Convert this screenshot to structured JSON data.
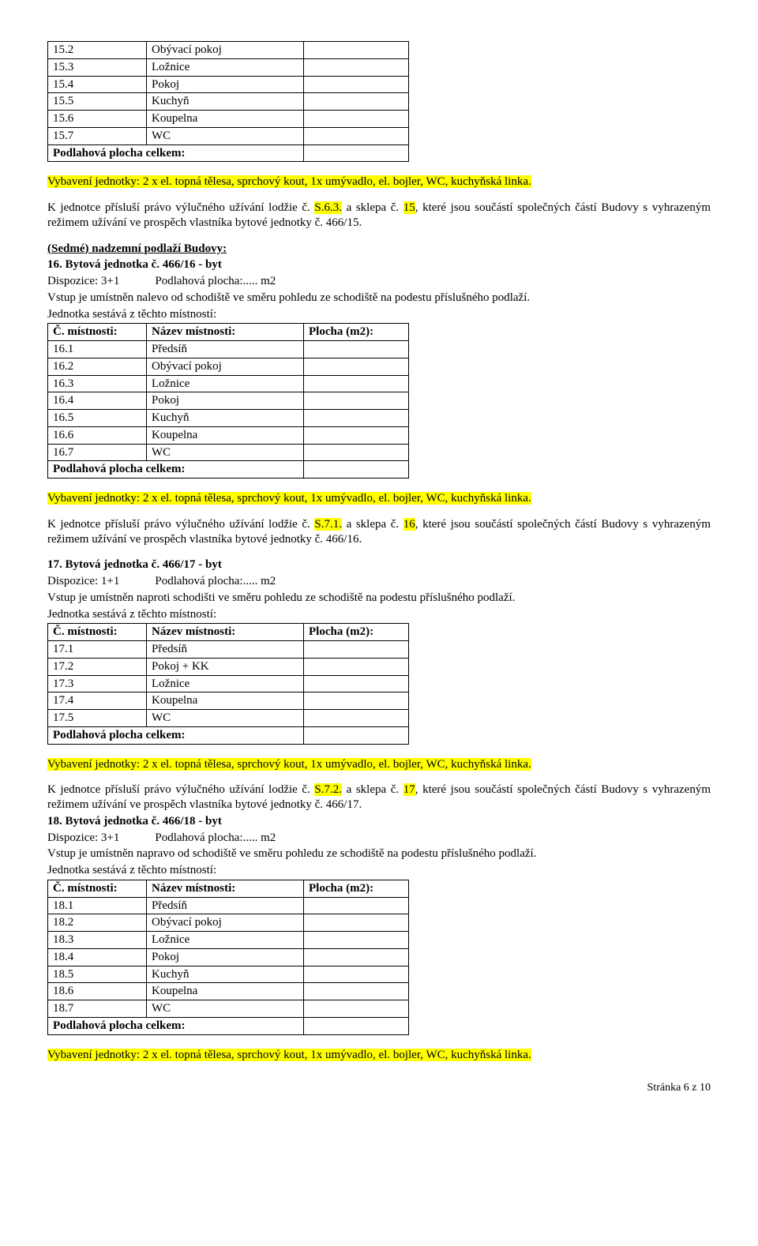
{
  "highlight_color": "#ffff00",
  "page_footer": "Stránka 6 z 10",
  "table15_rows": [
    {
      "n": "15.2",
      "name": "Obývací pokoj"
    },
    {
      "n": "15.3",
      "name": "Ložnice"
    },
    {
      "n": "15.4",
      "name": "Pokoj"
    },
    {
      "n": "15.5",
      "name": "Kuchyň"
    },
    {
      "n": "15.6",
      "name": "Koupelna"
    },
    {
      "n": "15.7",
      "name": "WC"
    }
  ],
  "floor_total_label": "Podlahová plocha celkem:",
  "equip_line": "Vybavení jednotky: 2 x el. topná tělesa, sprchový kout, 1x umývadlo, el. bojler, WC, kuchyňská linka.",
  "rights15_a": "K jednotce přísluší právo výlučného užívání lodžie č. ",
  "rights15_hl1": "S.6.3.",
  "rights15_b": " a sklepa č. ",
  "rights15_hl2": "15",
  "rights15_c": ", které jsou součástí společných částí Budovy s vyhrazeným režimem užívání ve prospěch vlastníka bytové jednotky č. 466/15.",
  "floor7_title": "(Sedmé) nadzemní podlaží Budovy:",
  "unit16_title": "16. Bytová jednotka č. 466/16 - byt",
  "disp31": "Dispozice: 3+1            Podlahová plocha:..... m2",
  "entry_left": "Vstup je umístněn nalevo od schodiště ve směru pohledu ze schodiště na podestu příslušného podlaží.",
  "rooms_intro": "Jednotka sestává z těchto místností:",
  "hdr_num": "Č. místnosti:",
  "hdr_name": "Název místnosti:",
  "hdr_area": "Plocha (m2):",
  "table16_rows": [
    {
      "n": "16.1",
      "name": "Předsíň"
    },
    {
      "n": "16.2",
      "name": "Obývací pokoj"
    },
    {
      "n": "16.3",
      "name": "Ložnice"
    },
    {
      "n": "16.4",
      "name": "Pokoj"
    },
    {
      "n": "16.5",
      "name": "Kuchyň"
    },
    {
      "n": "16.6",
      "name": "Koupelna"
    },
    {
      "n": "16.7",
      "name": "WC"
    }
  ],
  "rights16_a": "K jednotce přísluší právo výlučného užívání lodžie č. ",
  "rights16_hl1": "S.7.1.",
  "rights16_b": " a sklepa č. ",
  "rights16_hl2": "16",
  "rights16_c": ", které jsou součástí společných částí Budovy s vyhrazeným režimem užívání ve prospěch vlastníka bytové jednotky č. 466/16.",
  "unit17_title": "17. Bytová jednotka č. 466/17 - byt",
  "disp11": "Dispozice: 1+1            Podlahová plocha:..... m2",
  "entry_opposite": "Vstup je umístněn naproti schodišti ve směru pohledu ze schodiště na podestu příslušného podlaží.",
  "table17_rows": [
    {
      "n": "17.1",
      "name": "Předsíň"
    },
    {
      "n": "17.2",
      "name": "Pokoj + KK"
    },
    {
      "n": "17.3",
      "name": "Ložnice"
    },
    {
      "n": "17.4",
      "name": "Koupelna"
    },
    {
      "n": "17.5",
      "name": "WC"
    }
  ],
  "rights17_a": "K jednotce přísluší právo výlučného užívání lodžie č. ",
  "rights17_hl1": "S.7.2.",
  "rights17_b": " a sklepa č. ",
  "rights17_hl2": "17",
  "rights17_c": ", které jsou součástí společných částí Budovy s vyhrazeným režimem užívání ve prospěch vlastníka bytové jednotky č. 466/17.",
  "unit18_title": "18. Bytová jednotka č. 466/18 - byt",
  "entry_right": "Vstup je umístněn napravo od schodiště ve směru pohledu ze schodiště na podestu příslušného podlaží.",
  "table18_rows": [
    {
      "n": "18.1",
      "name": "Předsíň"
    },
    {
      "n": "18.2",
      "name": "Obývací pokoj"
    },
    {
      "n": "18.3",
      "name": "Ložnice"
    },
    {
      "n": "18.4",
      "name": "Pokoj"
    },
    {
      "n": "18.5",
      "name": "Kuchyň"
    },
    {
      "n": "18.6",
      "name": "Koupelna"
    },
    {
      "n": "18.7",
      "name": "WC"
    }
  ]
}
